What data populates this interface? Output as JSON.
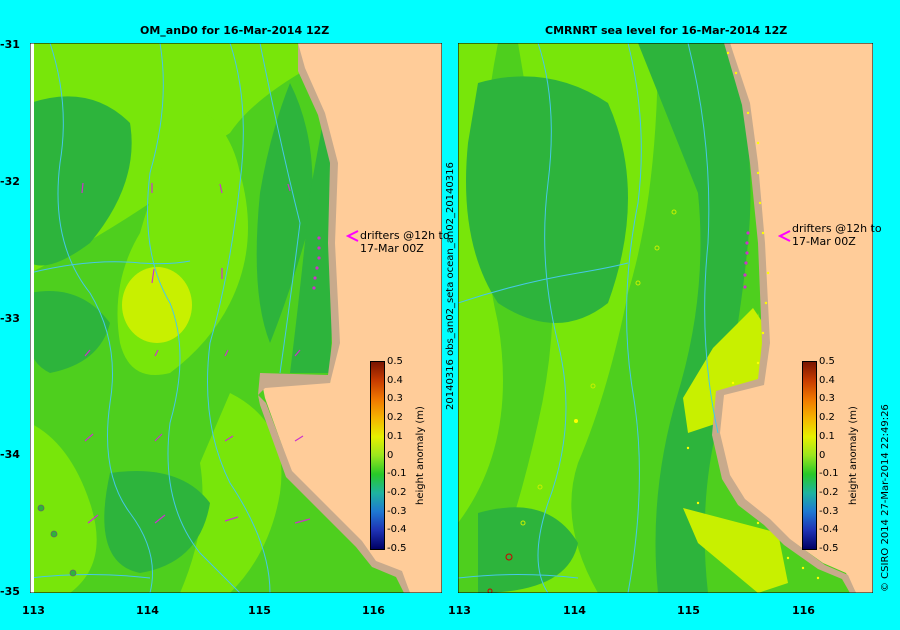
{
  "panels": [
    {
      "title": "OM_anD0 for 16-Mar-2014 12Z",
      "annotation": [
        "drifters @12h to",
        "17-Mar 00Z"
      ]
    },
    {
      "title": "CMRNRT sea level  for 16-Mar-2014 12Z",
      "annotation": [
        "drifters @12h to",
        "17-Mar 00Z"
      ],
      "side_label": "20140316 obs_an02_seta   ocean_an02_20140316"
    }
  ],
  "y_ticks": [
    "-31",
    "-32",
    "-33",
    "-34",
    "-35"
  ],
  "x_ticks_left": [
    "113",
    "114",
    "115",
    "116"
  ],
  "x_ticks_right": [
    "113",
    "114",
    "115",
    "116"
  ],
  "colorbar": {
    "title": "height anomaly (m)",
    "labels": [
      "0.5",
      "0.4",
      "0.3",
      "0.2",
      "0.1",
      "0",
      "-0.1",
      "-0.2",
      "-0.3",
      "-0.4",
      "-0.5"
    ],
    "colors": [
      "#7a1500",
      "#c83c00",
      "#f07800",
      "#f5b400",
      "#e6f000",
      "#9be61e",
      "#28c828",
      "#1eb4a0",
      "#1e78d2",
      "#1e32b4",
      "#000064"
    ]
  },
  "credit": "© CSIRO 2014   27-Mar-2014 22:49:26",
  "colors": {
    "land": "#ffcc99",
    "beach": "#c8aa8c",
    "sea_mid": "#4ecf1e",
    "sea_light": "#78e60a",
    "sea_dark": "#2db43c",
    "lime": "#c8f000",
    "river": "#46c8e6",
    "arrow": "#cc33cc"
  }
}
